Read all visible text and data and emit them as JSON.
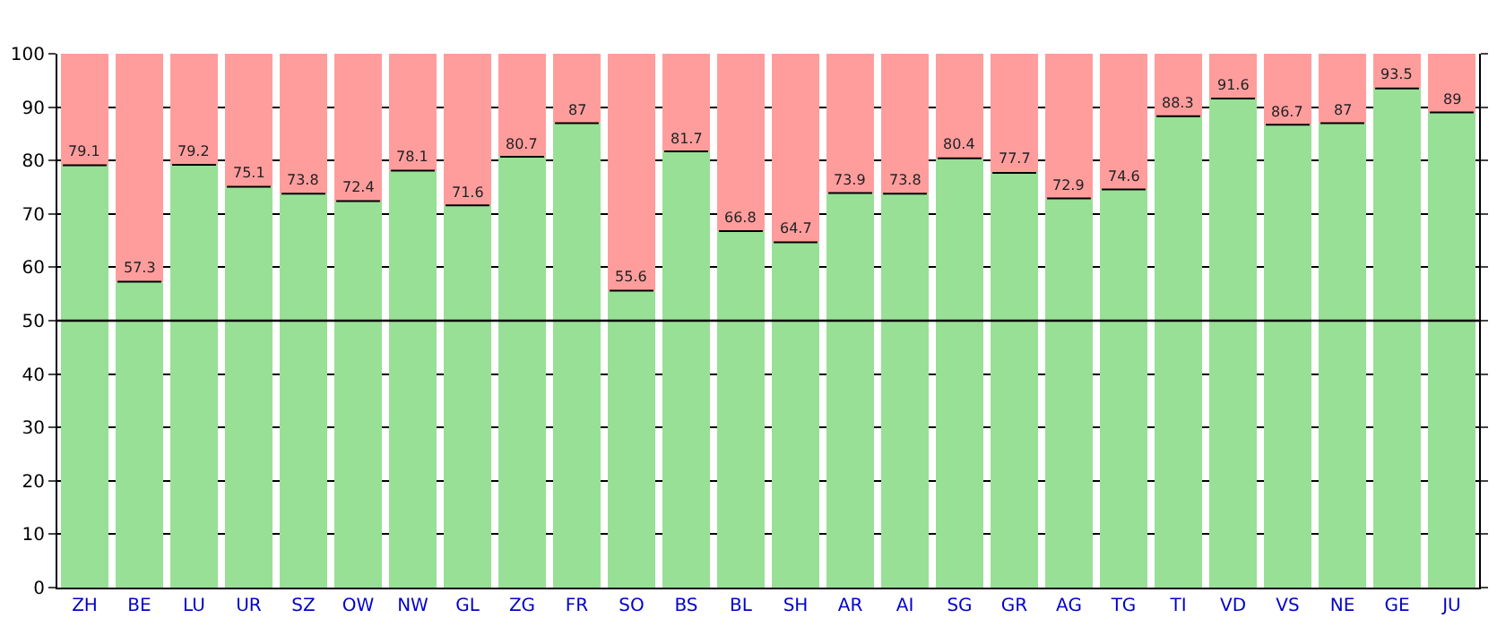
{
  "chart_data": {
    "type": "bar",
    "stacked": true,
    "categories": [
      "ZH",
      "BE",
      "LU",
      "UR",
      "SZ",
      "OW",
      "NW",
      "GL",
      "ZG",
      "FR",
      "SO",
      "BS",
      "BL",
      "SH",
      "AR",
      "AI",
      "SG",
      "GR",
      "AG",
      "TG",
      "TI",
      "VD",
      "VS",
      "NE",
      "GE",
      "JU"
    ],
    "series": [
      {
        "color": "#98e095",
        "values": [
          79.1,
          57.3,
          79.2,
          75.1,
          73.8,
          72.4,
          78.1,
          71.6,
          80.7,
          87,
          55.6,
          81.7,
          66.8,
          64.7,
          73.9,
          73.8,
          80.4,
          77.7,
          72.9,
          74.6,
          88.3,
          91.6,
          86.7,
          87,
          93.5,
          89
        ],
        "value_labels": [
          "79.1",
          "57.3",
          "79.2",
          "75.1",
          "73.8",
          "72.4",
          "78.1",
          "71.6",
          "80.7",
          "87",
          "55.6",
          "81.7",
          "66.8",
          "64.7",
          "73.9",
          "73.8",
          "80.4",
          "77.7",
          "72.9",
          "74.6",
          "88.3",
          "91.6",
          "86.7",
          "87",
          "93.5",
          "89"
        ]
      },
      {
        "color": "#ff9d9d",
        "values": [
          20.9,
          42.7,
          20.8,
          24.9,
          26.2,
          27.6,
          21.9,
          28.4,
          19.3,
          13,
          44.4,
          18.3,
          33.2,
          35.3,
          26.1,
          26.2,
          19.6,
          22.3,
          27.1,
          25.4,
          11.7,
          8.4,
          13.3,
          13,
          6.5,
          11
        ]
      }
    ],
    "ylim": [
      0,
      100
    ],
    "yticks": [
      0,
      10,
      20,
      30,
      40,
      50,
      60,
      70,
      80,
      90,
      100
    ],
    "grid": "y",
    "ref_lines": [
      {
        "axis": "y",
        "value": 50,
        "color": "#000000"
      }
    ]
  }
}
